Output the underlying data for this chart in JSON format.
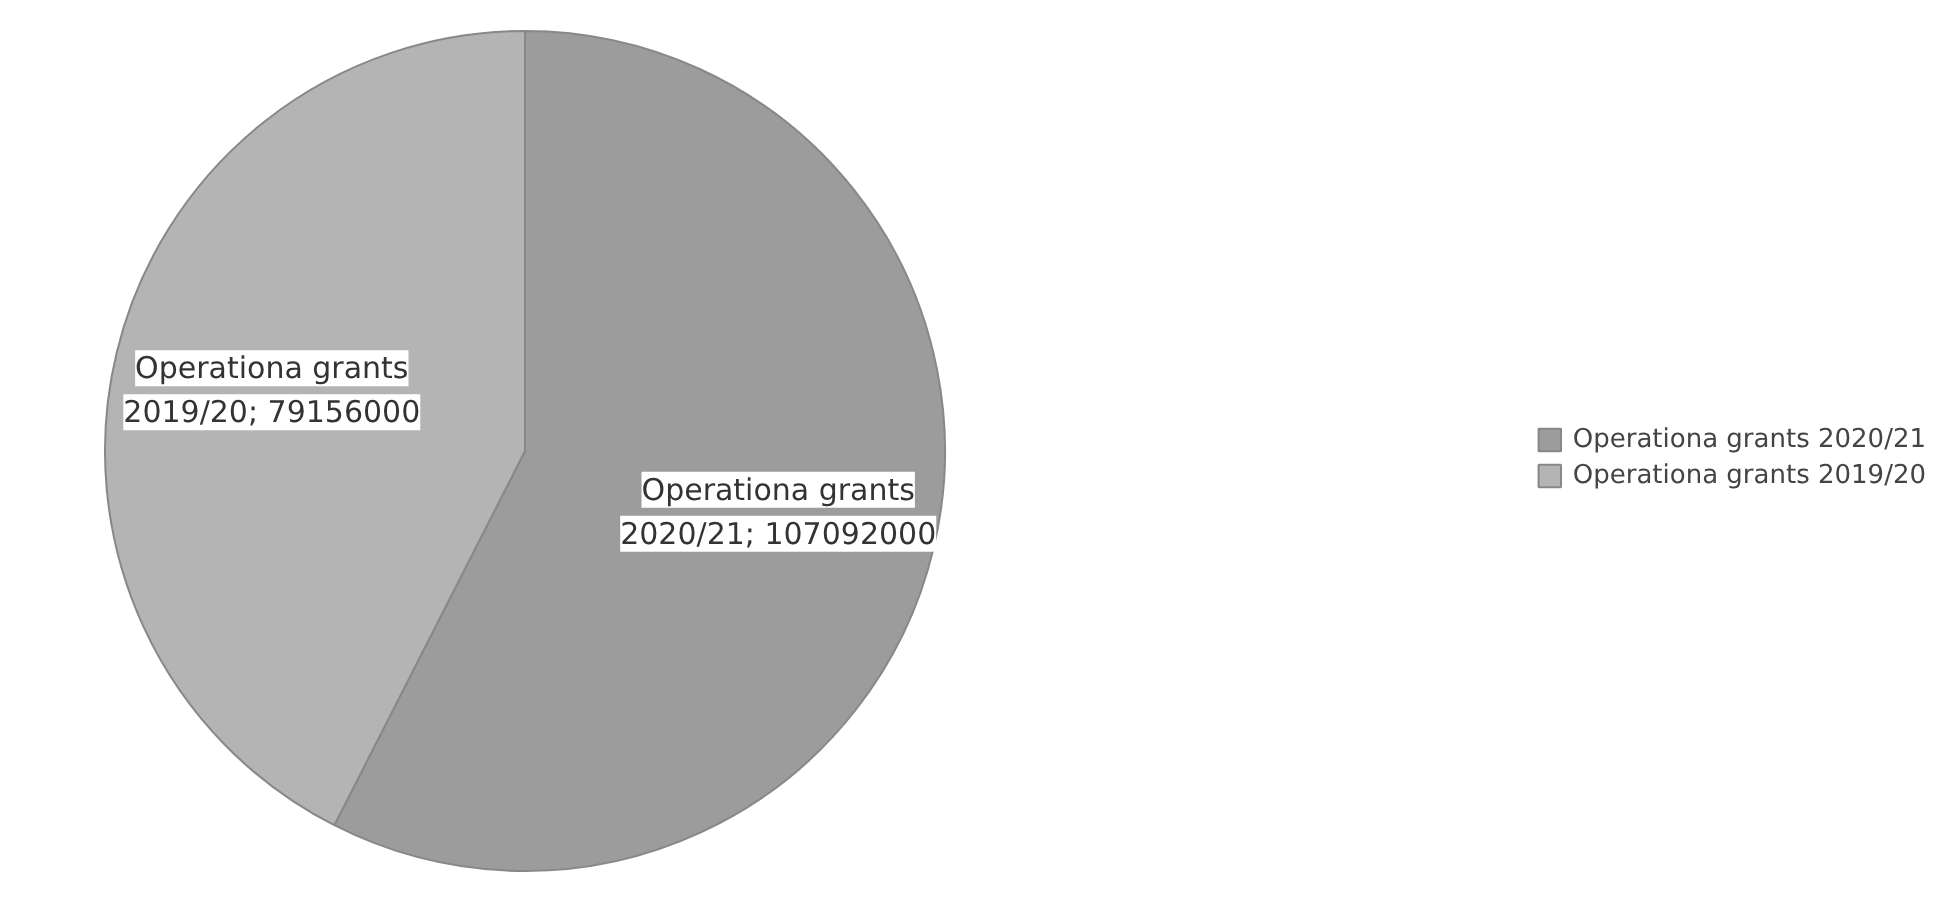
{
  "chart_data": {
    "type": "pie",
    "categories": [
      "Operationa grants 2020/21",
      "Operationa grants 2019/20"
    ],
    "values": [
      107092000,
      79156000
    ],
    "colors": [
      "#9c9c9c",
      "#b4b4b4"
    ],
    "value_labels": [
      "Operationa grants 2020/21; 107092000",
      "Operationa grants 2019/20; 79156000"
    ],
    "legend": "right"
  }
}
